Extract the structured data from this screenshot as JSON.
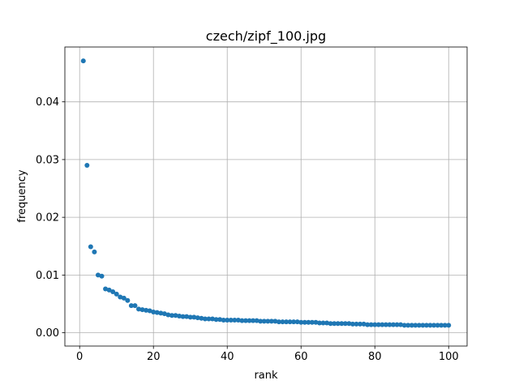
{
  "chart_data": {
    "type": "scatter",
    "title": "czech/zipf_100.jpg",
    "xlabel": "rank",
    "ylabel": "frequency",
    "xlim": [
      -4,
      105
    ],
    "ylim": [
      -0.0023,
      0.0495
    ],
    "xticks": [
      0,
      20,
      40,
      60,
      80,
      100
    ],
    "xtick_labels": [
      "0",
      "20",
      "40",
      "60",
      "80",
      "100"
    ],
    "yticks": [
      0.0,
      0.01,
      0.02,
      0.03,
      0.04
    ],
    "ytick_labels": [
      "0.00",
      "0.01",
      "0.02",
      "0.03",
      "0.04"
    ],
    "grid": true,
    "marker_color": "#1f77b4",
    "series": [
      {
        "x": [
          1,
          2,
          3,
          4,
          5,
          6,
          7,
          8,
          9,
          10,
          11,
          12,
          13,
          14,
          15,
          16,
          17,
          18,
          19,
          20,
          21,
          22,
          23,
          24,
          25,
          26,
          27,
          28,
          29,
          30,
          31,
          32,
          33,
          34,
          35,
          36,
          37,
          38,
          39,
          40,
          41,
          42,
          43,
          44,
          45,
          46,
          47,
          48,
          49,
          50,
          51,
          52,
          53,
          54,
          55,
          56,
          57,
          58,
          59,
          60,
          61,
          62,
          63,
          64,
          65,
          66,
          67,
          68,
          69,
          70,
          71,
          72,
          73,
          74,
          75,
          76,
          77,
          78,
          79,
          80,
          81,
          82,
          83,
          84,
          85,
          86,
          87,
          88,
          89,
          90,
          91,
          92,
          93,
          94,
          95,
          96,
          97,
          98,
          99,
          100
        ],
        "y": [
          0.0471,
          0.029,
          0.0149,
          0.014,
          0.01,
          0.0098,
          0.0076,
          0.0074,
          0.0071,
          0.0067,
          0.0062,
          0.006,
          0.0056,
          0.0047,
          0.0047,
          0.0041,
          0.004,
          0.0039,
          0.0038,
          0.0036,
          0.0035,
          0.0034,
          0.0033,
          0.0031,
          0.003,
          0.003,
          0.0029,
          0.0028,
          0.0028,
          0.0027,
          0.0027,
          0.0026,
          0.0025,
          0.0024,
          0.0024,
          0.0024,
          0.0023,
          0.0023,
          0.0022,
          0.0022,
          0.0022,
          0.0022,
          0.0022,
          0.0021,
          0.0021,
          0.0021,
          0.0021,
          0.0021,
          0.002,
          0.002,
          0.002,
          0.002,
          0.002,
          0.0019,
          0.0019,
          0.0019,
          0.0019,
          0.0019,
          0.0019,
          0.0018,
          0.0018,
          0.0018,
          0.0018,
          0.0018,
          0.0017,
          0.0017,
          0.0017,
          0.0016,
          0.0016,
          0.0016,
          0.0016,
          0.0016,
          0.0016,
          0.0015,
          0.0015,
          0.0015,
          0.0015,
          0.0014,
          0.0014,
          0.0014,
          0.0014,
          0.0014,
          0.0014,
          0.0014,
          0.0014,
          0.0014,
          0.0014,
          0.0013,
          0.0013,
          0.0013,
          0.0013,
          0.0013,
          0.0013,
          0.0013,
          0.0013,
          0.0013,
          0.0013,
          0.0013,
          0.0013,
          0.0013
        ]
      }
    ]
  }
}
